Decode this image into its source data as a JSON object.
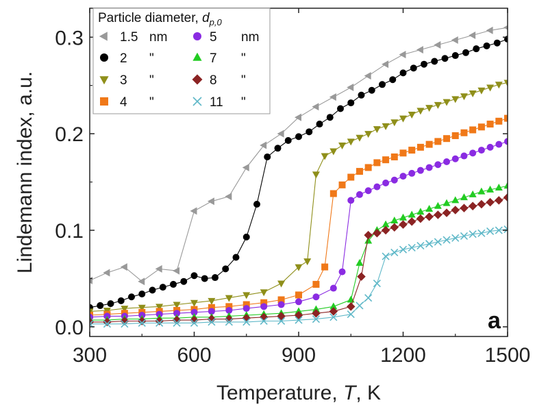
{
  "chart_data": {
    "type": "line",
    "title": "",
    "xlabel_prefix": "Temperature, ",
    "xlabel_var": "T",
    "xlabel_suffix": ", K",
    "ylabel": "Lindemann index, a.u.",
    "xlim": [
      300,
      1500
    ],
    "ylim": [
      -0.01,
      0.33
    ],
    "xticks": [
      300,
      600,
      900,
      1200,
      1500
    ],
    "yticks": [
      0.0,
      0.1,
      0.2,
      0.3
    ],
    "xtick_labels": [
      "300",
      "600",
      "900",
      "1200",
      "1500"
    ],
    "ytick_labels": [
      "0.0",
      "0.1",
      "0.2",
      "0.3"
    ],
    "grid": false,
    "legend_placement": "top-left",
    "legend_title_prefix": "Particle diameter, ",
    "legend_title_var": "d",
    "legend_title_sub": "p,0",
    "panel_label": "a",
    "series": [
      {
        "name": "1.5",
        "unit": "nm",
        "color": "#999999",
        "marker": "triangle-left",
        "x": [
          300,
          350,
          400,
          450,
          500,
          550,
          600,
          650,
          700,
          750,
          800,
          850,
          900,
          950,
          1000,
          1050,
          1100,
          1150,
          1200,
          1250,
          1300,
          1350,
          1400,
          1450,
          1500
        ],
        "y": [
          0.048,
          0.056,
          0.062,
          0.047,
          0.06,
          0.058,
          0.12,
          0.13,
          0.135,
          0.165,
          0.188,
          0.2,
          0.217,
          0.228,
          0.238,
          0.248,
          0.26,
          0.272,
          0.282,
          0.287,
          0.292,
          0.297,
          0.302,
          0.307,
          0.31
        ]
      },
      {
        "name": "2",
        "unit": "\"",
        "color": "#000000",
        "marker": "circle",
        "x": [
          300,
          330,
          360,
          390,
          420,
          450,
          480,
          510,
          540,
          570,
          600,
          630,
          660,
          690,
          720,
          750,
          780,
          810,
          840,
          870,
          900,
          930,
          960,
          990,
          1020,
          1050,
          1080,
          1110,
          1140,
          1170,
          1200,
          1230,
          1260,
          1290,
          1320,
          1350,
          1380,
          1410,
          1440,
          1470,
          1500
        ],
        "y": [
          0.02,
          0.022,
          0.024,
          0.027,
          0.031,
          0.034,
          0.038,
          0.041,
          0.044,
          0.047,
          0.053,
          0.05,
          0.051,
          0.06,
          0.072,
          0.093,
          0.127,
          0.176,
          0.185,
          0.193,
          0.197,
          0.202,
          0.21,
          0.217,
          0.226,
          0.232,
          0.24,
          0.245,
          0.251,
          0.256,
          0.263,
          0.268,
          0.272,
          0.275,
          0.278,
          0.281,
          0.284,
          0.288,
          0.291,
          0.294,
          0.298
        ]
      },
      {
        "name": "3",
        "unit": "\"",
        "color": "#8f8f1a",
        "marker": "triangle-down",
        "x": [
          300,
          350,
          400,
          450,
          500,
          550,
          600,
          650,
          700,
          750,
          800,
          850,
          900,
          925,
          950,
          975,
          1000,
          1025,
          1050,
          1075,
          1100,
          1125,
          1150,
          1175,
          1200,
          1225,
          1250,
          1275,
          1300,
          1325,
          1350,
          1375,
          1400,
          1425,
          1450,
          1475,
          1500
        ],
        "y": [
          0.016,
          0.017,
          0.019,
          0.02,
          0.021,
          0.023,
          0.025,
          0.027,
          0.03,
          0.033,
          0.036,
          0.045,
          0.062,
          0.068,
          0.158,
          0.177,
          0.182,
          0.188,
          0.192,
          0.196,
          0.2,
          0.205,
          0.208,
          0.212,
          0.216,
          0.22,
          0.224,
          0.227,
          0.23,
          0.233,
          0.236,
          0.239,
          0.242,
          0.245,
          0.248,
          0.251,
          0.253
        ]
      },
      {
        "name": "4",
        "unit": "\"",
        "color": "#f07818",
        "marker": "square",
        "x": [
          300,
          350,
          400,
          450,
          500,
          550,
          600,
          650,
          700,
          750,
          800,
          850,
          900,
          950,
          975,
          1000,
          1025,
          1050,
          1075,
          1100,
          1125,
          1150,
          1175,
          1200,
          1225,
          1250,
          1275,
          1300,
          1325,
          1350,
          1375,
          1400,
          1425,
          1450,
          1475,
          1500
        ],
        "y": [
          0.012,
          0.013,
          0.014,
          0.015,
          0.016,
          0.017,
          0.018,
          0.02,
          0.021,
          0.023,
          0.025,
          0.028,
          0.033,
          0.044,
          0.062,
          0.138,
          0.147,
          0.155,
          0.161,
          0.165,
          0.17,
          0.173,
          0.176,
          0.18,
          0.183,
          0.186,
          0.189,
          0.192,
          0.195,
          0.198,
          0.201,
          0.204,
          0.207,
          0.21,
          0.213,
          0.216
        ]
      },
      {
        "name": "5",
        "unit": "nm",
        "color": "#8a2be2",
        "marker": "circle",
        "x": [
          300,
          350,
          400,
          450,
          500,
          550,
          600,
          650,
          700,
          750,
          800,
          850,
          900,
          950,
          1000,
          1025,
          1050,
          1075,
          1100,
          1125,
          1150,
          1175,
          1200,
          1225,
          1250,
          1275,
          1300,
          1325,
          1350,
          1375,
          1400,
          1425,
          1450,
          1475,
          1500
        ],
        "y": [
          0.01,
          0.011,
          0.011,
          0.012,
          0.013,
          0.014,
          0.015,
          0.016,
          0.017,
          0.019,
          0.021,
          0.023,
          0.026,
          0.031,
          0.04,
          0.057,
          0.131,
          0.137,
          0.141,
          0.145,
          0.149,
          0.152,
          0.156,
          0.159,
          0.162,
          0.165,
          0.168,
          0.171,
          0.174,
          0.177,
          0.18,
          0.183,
          0.186,
          0.189,
          0.192
        ]
      },
      {
        "name": "7",
        "unit": "\"",
        "color": "#22cc22",
        "marker": "triangle-up",
        "x": [
          300,
          350,
          400,
          450,
          500,
          550,
          600,
          650,
          700,
          750,
          800,
          850,
          900,
          950,
          1000,
          1050,
          1075,
          1100,
          1125,
          1150,
          1175,
          1200,
          1225,
          1250,
          1275,
          1300,
          1325,
          1350,
          1375,
          1400,
          1425,
          1450,
          1475,
          1500
        ],
        "y": [
          0.007,
          0.007,
          0.008,
          0.008,
          0.009,
          0.009,
          0.01,
          0.01,
          0.011,
          0.012,
          0.013,
          0.014,
          0.016,
          0.018,
          0.021,
          0.028,
          0.066,
          0.089,
          0.1,
          0.106,
          0.11,
          0.113,
          0.116,
          0.119,
          0.122,
          0.125,
          0.128,
          0.131,
          0.134,
          0.137,
          0.14,
          0.142,
          0.144,
          0.146
        ]
      },
      {
        "name": "8",
        "unit": "\"",
        "color": "#8b2323",
        "marker": "diamond",
        "x": [
          300,
          350,
          400,
          450,
          500,
          550,
          600,
          650,
          700,
          750,
          800,
          850,
          900,
          950,
          1000,
          1050,
          1080,
          1100,
          1125,
          1150,
          1175,
          1200,
          1225,
          1250,
          1275,
          1300,
          1325,
          1350,
          1375,
          1400,
          1425,
          1450,
          1475,
          1500
        ],
        "y": [
          0.005,
          0.005,
          0.006,
          0.006,
          0.006,
          0.007,
          0.007,
          0.008,
          0.008,
          0.009,
          0.01,
          0.011,
          0.012,
          0.014,
          0.016,
          0.021,
          0.052,
          0.095,
          0.097,
          0.1,
          0.103,
          0.106,
          0.109,
          0.112,
          0.114,
          0.116,
          0.118,
          0.121,
          0.123,
          0.125,
          0.127,
          0.129,
          0.131,
          0.134
        ]
      },
      {
        "name": "11",
        "unit": "\"",
        "color": "#5fb8c8",
        "marker": "x",
        "x": [
          300,
          350,
          400,
          450,
          500,
          550,
          600,
          650,
          700,
          750,
          800,
          850,
          900,
          950,
          1000,
          1050,
          1075,
          1100,
          1125,
          1150,
          1175,
          1200,
          1225,
          1250,
          1275,
          1300,
          1325,
          1350,
          1375,
          1400,
          1425,
          1450,
          1475,
          1500
        ],
        "y": [
          0.003,
          0.003,
          0.003,
          0.004,
          0.004,
          0.004,
          0.004,
          0.005,
          0.005,
          0.005,
          0.006,
          0.006,
          0.007,
          0.008,
          0.01,
          0.013,
          0.022,
          0.03,
          0.045,
          0.073,
          0.077,
          0.08,
          0.082,
          0.084,
          0.086,
          0.088,
          0.09,
          0.092,
          0.094,
          0.096,
          0.097,
          0.099,
          0.1,
          0.101
        ]
      }
    ]
  }
}
